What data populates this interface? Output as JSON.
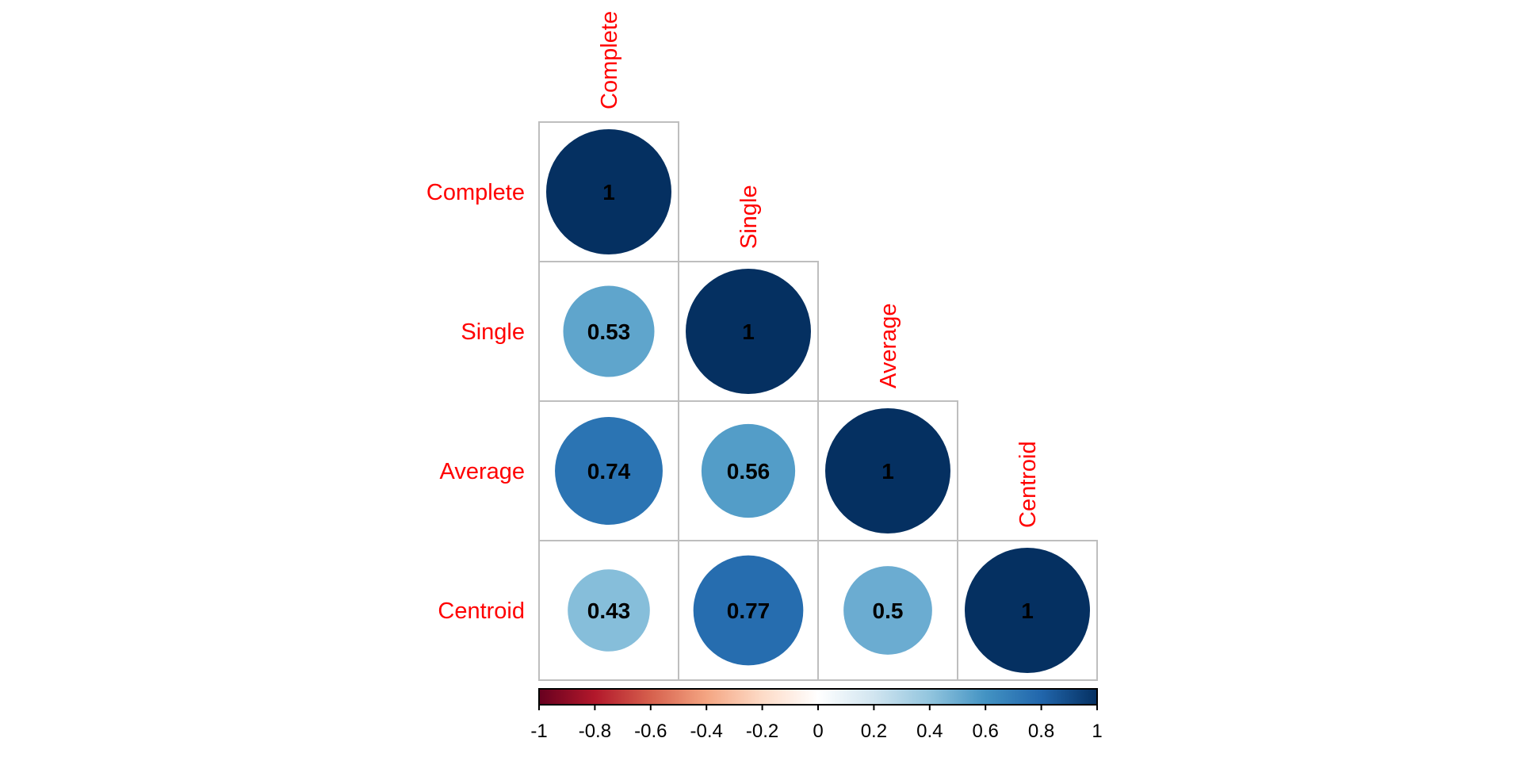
{
  "chart_data": {
    "type": "heatmap",
    "subtype": "correlation-circle-lower",
    "variables": [
      "Complete",
      "Single",
      "Average",
      "Centroid"
    ],
    "matrix": [
      [
        1,
        null,
        null,
        null
      ],
      [
        0.53,
        1,
        null,
        null
      ],
      [
        0.74,
        0.56,
        1,
        null
      ],
      [
        0.43,
        0.77,
        0.5,
        1
      ]
    ],
    "value_labels": [
      [
        "1",
        null,
        null,
        null
      ],
      [
        "0.53",
        "1",
        null,
        null
      ],
      [
        "0.74",
        "0.56",
        "1",
        null
      ],
      [
        "0.43",
        "0.77",
        "0.5",
        "1"
      ]
    ],
    "colorbar": {
      "range": [
        -1,
        1
      ],
      "ticks": [
        -1,
        -0.8,
        -0.6,
        -0.4,
        -0.2,
        0,
        0.2,
        0.4,
        0.6,
        0.8,
        1
      ],
      "tick_labels": [
        "-1",
        "-0.8",
        "-0.6",
        "-0.4",
        "-0.2",
        "0",
        "0.2",
        "0.4",
        "0.6",
        "0.8",
        "1"
      ],
      "palette": [
        "#67001f",
        "#b2182b",
        "#d6604d",
        "#f4a582",
        "#fddbc7",
        "#ffffff",
        "#d1e5f0",
        "#92c5de",
        "#4393c3",
        "#2166ac",
        "#053061"
      ],
      "placement": "bottom"
    },
    "label_color": "#ff0000",
    "grid_color": "#bebebe",
    "title": "",
    "legend": "colorbar-bottom"
  }
}
